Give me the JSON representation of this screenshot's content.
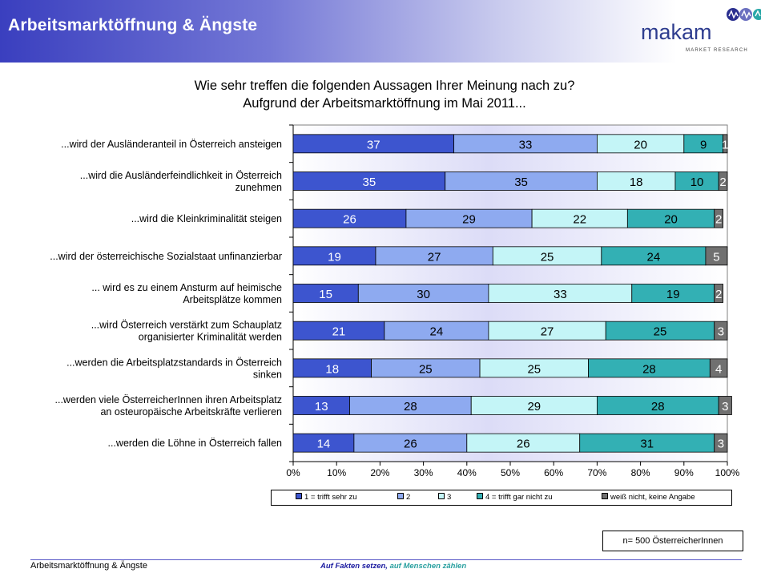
{
  "header": {
    "title": "Arbeitsmarktöffnung & Ängste"
  },
  "logo": {
    "name": "makam",
    "subtitle": "MARKET RESEARCH"
  },
  "colors": {
    "s1": "#3d55cf",
    "s2": "#8eaaf0",
    "s3": "#c4f5f7",
    "s4": "#33b0b4",
    "s5": "#707070"
  },
  "chart_data": {
    "type": "bar",
    "orientation": "horizontal",
    "stacked": "percent",
    "title": [
      "Wie sehr treffen die folgenden Aussagen Ihrer Meinung nach zu?",
      "Aufgrund der Arbeitsmarktöffnung im Mai 2011..."
    ],
    "categories": [
      "...wird der Ausländeranteil in Österreich ansteigen",
      "...wird die Ausländerfeindlichkeit in Österreich zunehmen",
      "...wird die Kleinkriminalität steigen",
      "...wird der österreichische Sozialstaat unfinanzierbar",
      "... wird es zu einem Ansturm auf heimische Arbeitsplätze kommen",
      "...wird Österreich verstärkt zum Schauplatz organisierter Kriminalität werden",
      "...werden die Arbeitsplatzstandards in Österreich sinken",
      "...werden viele ÖsterreicherInnen ihren Arbeitsplatz an osteuropäische Arbeitskräfte verlieren",
      "...werden die Löhne in Österreich fallen"
    ],
    "category_lines": [
      [
        "...wird der Ausländeranteil in Österreich ansteigen"
      ],
      [
        "...wird die Ausländerfeindlichkeit in Österreich",
        "zunehmen"
      ],
      [
        "...wird die Kleinkriminalität steigen"
      ],
      [
        "...wird der österreichische Sozialstaat unfinanzierbar"
      ],
      [
        "... wird es zu einem Ansturm auf heimische",
        "Arbeitsplätze kommen"
      ],
      [
        "...wird Österreich verstärkt zum Schauplatz",
        "organisierter Kriminalität werden"
      ],
      [
        "...werden die Arbeitsplatzstandards in Österreich",
        "sinken"
      ],
      [
        "...werden viele ÖsterreicherInnen ihren Arbeitsplatz",
        "an osteuropäische Arbeitskräfte verlieren"
      ],
      [
        "...werden die Löhne in Österreich fallen"
      ]
    ],
    "series": [
      {
        "name": "1 = trifft sehr zu",
        "values": [
          37,
          35,
          26,
          19,
          15,
          21,
          18,
          13,
          14
        ]
      },
      {
        "name": "2",
        "values": [
          33,
          35,
          29,
          27,
          30,
          24,
          25,
          28,
          26
        ]
      },
      {
        "name": "3",
        "values": [
          20,
          18,
          22,
          25,
          33,
          27,
          25,
          29,
          26
        ]
      },
      {
        "name": "4 = trifft gar nicht zu",
        "values": [
          9,
          10,
          20,
          24,
          19,
          25,
          28,
          28,
          31
        ]
      },
      {
        "name": "weiß nicht, keine Angabe",
        "values": [
          1,
          2,
          2,
          5,
          2,
          3,
          4,
          3,
          3
        ]
      }
    ],
    "xlim": [
      0,
      100
    ],
    "xticks": [
      "0%",
      "10%",
      "20%",
      "30%",
      "40%",
      "50%",
      "60%",
      "70%",
      "80%",
      "90%",
      "100%"
    ],
    "legend_position": "bottom"
  },
  "sample_note": "n= 500 ÖsterreicherInnen",
  "footer": {
    "left": "Arbeitsmarktöffnung & Ängste",
    "slogan_part1": "Auf Fakten setzen,",
    "slogan_part2": "auf Menschen zählen"
  }
}
